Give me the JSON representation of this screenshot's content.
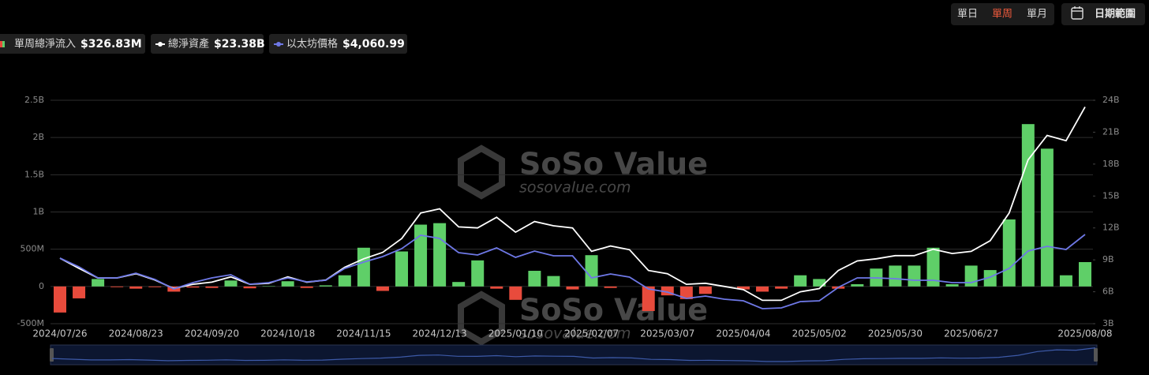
{
  "controls": {
    "periods": [
      "單日",
      "單周",
      "單月"
    ],
    "active": 1,
    "date_range": "日期範圍"
  },
  "watermark": {
    "brand": "SoSo Value",
    "site": "sosovalue.com"
  },
  "chart_data": {
    "type": "combo",
    "categories": [
      "2024/07/26",
      null,
      null,
      null,
      "2024/08/23",
      null,
      null,
      null,
      "2024/09/20",
      null,
      null,
      null,
      "2024/10/18",
      null,
      null,
      null,
      "2024/11/15",
      null,
      null,
      null,
      "2024/12/13",
      null,
      null,
      null,
      "2025/01/10",
      null,
      null,
      null,
      "2025/02/07",
      null,
      null,
      null,
      "2025/03/07",
      null,
      null,
      null,
      "2025/04/04",
      null,
      null,
      null,
      "2025/05/02",
      null,
      null,
      null,
      "2025/05/30",
      null,
      null,
      null,
      "2025/06/27",
      null,
      null,
      null,
      null,
      null,
      "2025/08/08"
    ],
    "series": [
      {
        "name": "單周總淨流入",
        "type": "bar",
        "color": "#5fcf68",
        "negative_color": "#e84b3c",
        "legend_value": "$326.83M",
        "values": [
          -350,
          -160,
          100,
          -10,
          -30,
          -10,
          -70,
          -15,
          -20,
          80,
          -25,
          5,
          70,
          -20,
          15,
          150,
          520,
          -60,
          470,
          830,
          850,
          60,
          350,
          -30,
          -180,
          210,
          140,
          -40,
          420,
          -20,
          0,
          -330,
          -120,
          -170,
          -100,
          0,
          -40,
          -70,
          -30,
          150,
          100,
          -30,
          30,
          240,
          280,
          280,
          520,
          30,
          280,
          220,
          900,
          2180,
          1850,
          150,
          326.83
        ]
      },
      {
        "name": "總淨資產",
        "type": "line",
        "axis": "y2",
        "color": "#ffffff",
        "legend_value": "$23.38B",
        "values": [
          9.15,
          8.2,
          7.3,
          7.3,
          7.7,
          7.1,
          6.3,
          6.7,
          6.9,
          7.4,
          6.7,
          6.8,
          7.4,
          6.9,
          7.1,
          8.3,
          9.1,
          9.7,
          11.0,
          13.4,
          13.8,
          12.1,
          12.0,
          13.0,
          11.6,
          12.6,
          12.2,
          12.0,
          9.8,
          10.3,
          9.95,
          8.0,
          7.7,
          6.7,
          6.8,
          6.5,
          6.2,
          5.2,
          5.2,
          6.0,
          6.3,
          8.0,
          8.9,
          9.1,
          9.4,
          9.4,
          10.0,
          9.6,
          9.8,
          10.8,
          13.4,
          18.4,
          20.7,
          20.2,
          23.38
        ]
      },
      {
        "name": "以太坊價格",
        "type": "line",
        "axis": "y3",
        "color": "#6e78e6",
        "legend_value": "$4,060.99",
        "values": [
          3280,
          2994,
          2630,
          2630,
          2786,
          2578,
          2266,
          2474,
          2630,
          2734,
          2422,
          2474,
          2630,
          2500,
          2552,
          2942,
          3150,
          3332,
          3592,
          4034,
          3930,
          3462,
          3384,
          3618,
          3306,
          3514,
          3358,
          3358,
          2630,
          2760,
          2656,
          2266,
          2162,
          1954,
          2032,
          1928,
          1876,
          1616,
          1642,
          1850,
          1876,
          2318,
          2630,
          2630,
          2604,
          2552,
          2552,
          2474,
          2474,
          2656,
          2942,
          3514,
          3670,
          3566,
          4060.99
        ]
      }
    ],
    "ylim": [
      -500,
      2500
    ],
    "yticks": [
      {
        "value": -500,
        "label": "-500M"
      },
      0,
      {
        "value": 500,
        "label": "500M"
      },
      {
        "value": 1000,
        "label": "1B"
      },
      {
        "value": 1500,
        "label": "1.5B"
      },
      {
        "value": 2000,
        "label": "2B"
      },
      {
        "value": 2500,
        "label": "2.5B"
      }
    ],
    "y2lim": [
      3,
      24
    ],
    "y2ticks": [
      {
        "value": 3,
        "label": "3B"
      },
      {
        "value": 6,
        "label": "6B"
      },
      {
        "value": 9,
        "label": "9B"
      },
      {
        "value": 12,
        "label": "12B"
      },
      {
        "value": 15,
        "label": "15B"
      },
      {
        "value": 18,
        "label": "18B"
      },
      {
        "value": 21,
        "label": "21B"
      },
      {
        "value": 24,
        "label": "24B"
      }
    ],
    "y3lim": [
      1122,
      8480
    ],
    "grid": true
  }
}
